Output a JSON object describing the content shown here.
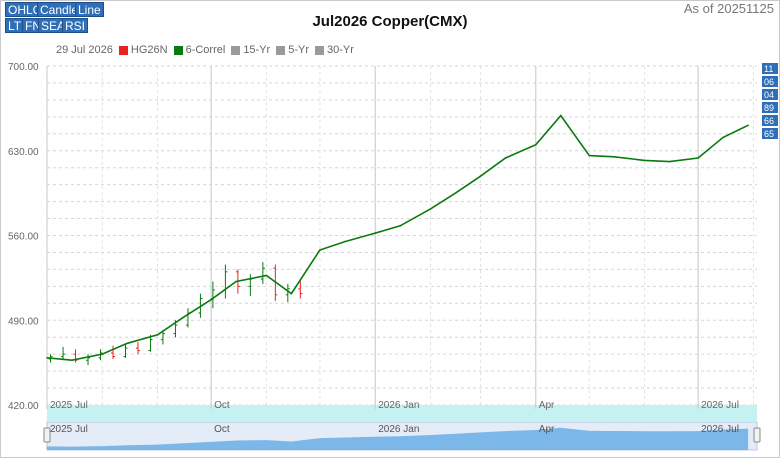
{
  "toolbar": {
    "row1": [
      "OHLC",
      "Candle",
      "Line"
    ],
    "row2": [
      "LT",
      "FN",
      "SEA",
      "RSI"
    ]
  },
  "header": {
    "title": "Jul2026 Copper(CMX)",
    "as_of": "As of 20251125"
  },
  "legend": {
    "date": "29 Jul 2026",
    "items": [
      {
        "label": "HG26N",
        "color": "#e8231f"
      },
      {
        "label": "6-Correl",
        "color": "#0a7a10"
      },
      {
        "label": "15-Yr",
        "color": "#9a9a9a"
      },
      {
        "label": "5-Yr",
        "color": "#9a9a9a"
      },
      {
        "label": "30-Yr",
        "color": "#9a9a9a"
      }
    ]
  },
  "right_badges": [
    "11",
    "06",
    "04",
    "89",
    "66",
    "65"
  ],
  "colors": {
    "line": "#0a7a10",
    "up": "#0a7a10",
    "down": "#e8231f",
    "accent": "#2f6fb7",
    "navigator": "#6aaee8"
  },
  "chart_data": {
    "type": "line",
    "title": "Jul2026 Copper(CMX)",
    "ylim": [
      420,
      700
    ],
    "y_ticks": [
      "700.00",
      "630.00",
      "560.00",
      "490.00",
      "420.00"
    ],
    "x_labels": [
      "2025 Jul",
      "Oct",
      "2026 Jan",
      "Apr",
      "2026 Jul"
    ],
    "navigator_labels": [
      "2025 Jul",
      "Oct",
      "2026 Jan",
      "Apr",
      "2026 Jul"
    ],
    "grid": true,
    "series": [
      {
        "name": "6-Correl",
        "x": [
          "2025-07-01",
          "2025-07-15",
          "2025-08-01",
          "2025-08-15",
          "2025-09-01",
          "2025-09-15",
          "2025-10-01",
          "2025-10-15",
          "2025-11-01",
          "2025-11-15",
          "2025-12-01",
          "2025-12-15",
          "2026-01-01",
          "2026-01-15",
          "2026-02-01",
          "2026-02-15",
          "2026-03-01",
          "2026-03-15",
          "2026-04-01",
          "2026-04-15",
          "2026-05-01",
          "2026-05-15",
          "2026-06-01",
          "2026-06-15",
          "2026-07-01",
          "2026-07-15",
          "2026-07-29"
        ],
        "values": [
          459,
          457,
          462,
          471,
          478,
          492,
          507,
          522,
          527,
          512,
          548,
          555,
          562,
          568,
          582,
          595,
          609,
          624,
          635,
          659,
          626,
          625,
          622,
          621,
          624,
          641,
          651
        ]
      }
    ],
    "ohlc": [
      {
        "date": "2025-07-03",
        "open": 458,
        "high": 462,
        "low": 455,
        "close": 460
      },
      {
        "date": "2025-07-10",
        "open": 460,
        "high": 468,
        "low": 457,
        "close": 462
      },
      {
        "date": "2025-07-17",
        "open": 462,
        "high": 466,
        "low": 455,
        "close": 457
      },
      {
        "date": "2025-07-24",
        "open": 457,
        "high": 462,
        "low": 453,
        "close": 459
      },
      {
        "date": "2025-07-31",
        "open": 459,
        "high": 466,
        "low": 457,
        "close": 463
      },
      {
        "date": "2025-08-07",
        "open": 463,
        "high": 469,
        "low": 458,
        "close": 460
      },
      {
        "date": "2025-08-14",
        "open": 460,
        "high": 470,
        "low": 459,
        "close": 467
      },
      {
        "date": "2025-08-21",
        "open": 467,
        "high": 472,
        "low": 462,
        "close": 465
      },
      {
        "date": "2025-08-28",
        "open": 465,
        "high": 478,
        "low": 464,
        "close": 474
      },
      {
        "date": "2025-09-04",
        "open": 474,
        "high": 482,
        "low": 470,
        "close": 479
      },
      {
        "date": "2025-09-11",
        "open": 479,
        "high": 490,
        "low": 476,
        "close": 486
      },
      {
        "date": "2025-09-18",
        "open": 486,
        "high": 500,
        "low": 484,
        "close": 496
      },
      {
        "date": "2025-09-25",
        "open": 496,
        "high": 512,
        "low": 492,
        "close": 508
      },
      {
        "date": "2025-10-02",
        "open": 508,
        "high": 522,
        "low": 500,
        "close": 515
      },
      {
        "date": "2025-10-09",
        "open": 515,
        "high": 536,
        "low": 508,
        "close": 530
      },
      {
        "date": "2025-10-16",
        "open": 530,
        "high": 532,
        "low": 512,
        "close": 518
      },
      {
        "date": "2025-10-23",
        "open": 518,
        "high": 528,
        "low": 510,
        "close": 524
      },
      {
        "date": "2025-10-30",
        "open": 524,
        "high": 538,
        "low": 520,
        "close": 533
      },
      {
        "date": "2025-11-06",
        "open": 533,
        "high": 536,
        "low": 506,
        "close": 511
      },
      {
        "date": "2025-11-13",
        "open": 511,
        "high": 520,
        "low": 505,
        "close": 516
      },
      {
        "date": "2025-11-20",
        "open": 516,
        "high": 524,
        "low": 508,
        "close": 512
      }
    ]
  }
}
